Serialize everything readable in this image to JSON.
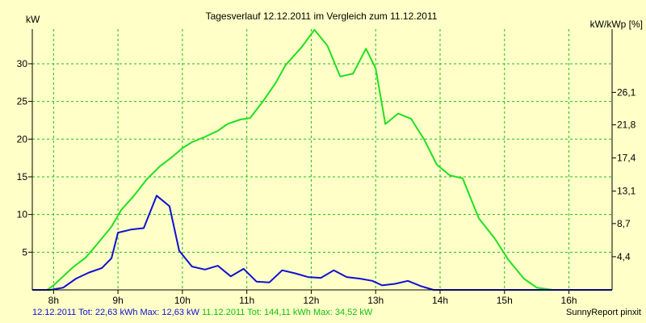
{
  "chart_data": {
    "type": "line",
    "title": "Tagesverlauf 12.12.2011 im Vergleich zum 11.12.2011",
    "ylabel_left": "kW",
    "ylabel_right": "kW/kWp [%]",
    "x_ticks": [
      {
        "h": 8,
        "label": "8h"
      },
      {
        "h": 9,
        "label": "9h"
      },
      {
        "h": 10,
        "label": "10h"
      },
      {
        "h": 11,
        "label": "11h"
      },
      {
        "h": 12,
        "label": "12h"
      },
      {
        "h": 13,
        "label": "13h"
      },
      {
        "h": 14,
        "label": "14h"
      },
      {
        "h": 15,
        "label": "15h"
      },
      {
        "h": 16,
        "label": "16h"
      }
    ],
    "xlim": [
      7.67,
      16.67
    ],
    "ylim": [
      0,
      34.6
    ],
    "y_ticks_left": [
      5,
      10,
      15,
      20,
      25,
      30
    ],
    "y_ticks_right": [
      {
        "kw": 4.4,
        "label": "4,4"
      },
      {
        "kw": 8.8,
        "label": "8,7"
      },
      {
        "kw": 13.1,
        "label": "13,1"
      },
      {
        "kw": 17.5,
        "label": "17,4"
      },
      {
        "kw": 21.9,
        "label": "21,8"
      },
      {
        "kw": 26.2,
        "label": "26,1"
      }
    ],
    "grid": true,
    "series": [
      {
        "name": "11.12.2011",
        "color": "#20e020",
        "x": [
          7.67,
          7.9,
          8.0,
          8.15,
          8.3,
          8.5,
          8.65,
          8.9,
          9.05,
          9.25,
          9.45,
          9.65,
          9.85,
          10.0,
          10.15,
          10.35,
          10.55,
          10.7,
          10.9,
          11.05,
          11.25,
          11.45,
          11.6,
          11.85,
          12.05,
          12.25,
          12.45,
          12.65,
          12.85,
          13.0,
          13.15,
          13.35,
          13.55,
          13.75,
          13.95,
          14.15,
          14.35,
          14.6,
          14.85,
          15.05,
          15.3,
          15.5,
          15.75,
          15.95,
          16.1,
          16.3,
          16.67
        ],
        "values": [
          0,
          0,
          0.6,
          1.8,
          3,
          4.3,
          5.8,
          8.4,
          10.6,
          12.5,
          14.7,
          16.4,
          17.7,
          18.8,
          19.6,
          20.3,
          21.1,
          22,
          22.6,
          22.8,
          25,
          27.5,
          29.8,
          32.2,
          34.5,
          32.4,
          28.3,
          28.7,
          32,
          29.4,
          22,
          23.4,
          22.7,
          20,
          16.6,
          15.2,
          14.8,
          9.5,
          6.8,
          4.1,
          1.5,
          0.3,
          0,
          0,
          0,
          0,
          0
        ]
      },
      {
        "name": "12.12.2011",
        "color": "#1010d0",
        "x": [
          7.67,
          7.95,
          8.15,
          8.35,
          8.55,
          8.75,
          8.9,
          9.0,
          9.2,
          9.4,
          9.6,
          9.8,
          9.95,
          10.15,
          10.35,
          10.55,
          10.75,
          10.95,
          11.15,
          11.35,
          11.55,
          11.75,
          11.95,
          12.15,
          12.35,
          12.55,
          12.75,
          12.95,
          13.1,
          13.3,
          13.5,
          13.7,
          13.9,
          14.1,
          14.3,
          14.5,
          14.7,
          14.9,
          15.1,
          15.3,
          15.5,
          15.7,
          15.9,
          16.1,
          16.67
        ],
        "values": [
          0,
          0,
          0.3,
          1.5,
          2.3,
          2.9,
          4.2,
          7.6,
          8,
          8.2,
          12.5,
          11.1,
          5.2,
          3.1,
          2.7,
          3.2,
          1.8,
          2.8,
          1.1,
          1,
          2.6,
          2.2,
          1.7,
          1.6,
          2.6,
          1.7,
          1.5,
          1.2,
          0.6,
          0.8,
          1.2,
          0.5,
          0,
          0,
          0,
          0,
          0,
          0,
          0,
          0,
          0,
          0,
          0,
          0,
          0
        ]
      }
    ]
  },
  "footer": {
    "blue_text": "12.12.2011 Tot: 22,63 kWh Max: 12,63 kW",
    "green_text": "11.12.2011 Tot: 144,11 kWh Max: 34,52 kW",
    "credit": "SunnyReport pinxit"
  }
}
